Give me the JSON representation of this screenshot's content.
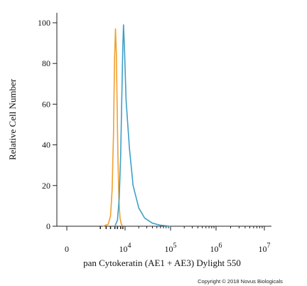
{
  "chart_data": {
    "type": "line",
    "title": "",
    "xlabel": "pan Cytokeratin (AE1 + AE3) Dylight 550",
    "ylabel": "Relative Cell Number",
    "x_scale": "biexponential",
    "ylim": [
      0,
      100
    ],
    "y_ticks": [
      "0",
      "20",
      "40",
      "60",
      "80",
      "100"
    ],
    "x_ticks": [
      {
        "base": "0",
        "exp": ""
      },
      {
        "base": "10",
        "exp": "4"
      },
      {
        "base": "10",
        "exp": "5"
      },
      {
        "base": "10",
        "exp": "6"
      },
      {
        "base": "10",
        "exp": "7"
      }
    ],
    "grid": false,
    "series": [
      {
        "color": "#f0a030",
        "x": [
          300,
          700,
          1000,
          1300,
          1600,
          1900,
          2200,
          2500,
          2800,
          3200,
          3800,
          4500,
          5500,
          7000
        ],
        "y": [
          0,
          1,
          5,
          18,
          45,
          82,
          97,
          85,
          62,
          35,
          12,
          4,
          1,
          0
        ]
      },
      {
        "color": "#3f9fc9",
        "x": [
          2000,
          3000,
          4000,
          5000,
          6000,
          7000,
          7800,
          9000,
          10500,
          12500,
          15000,
          20000,
          27000,
          40000,
          60000,
          100000
        ],
        "y": [
          0,
          3,
          14,
          35,
          65,
          88,
          99,
          88,
          62,
          38,
          20,
          9,
          4,
          1.5,
          0.5,
          0
        ]
      }
    ]
  },
  "footer": {
    "copyright": "Copyright © 2018 Novus Biologicals"
  }
}
